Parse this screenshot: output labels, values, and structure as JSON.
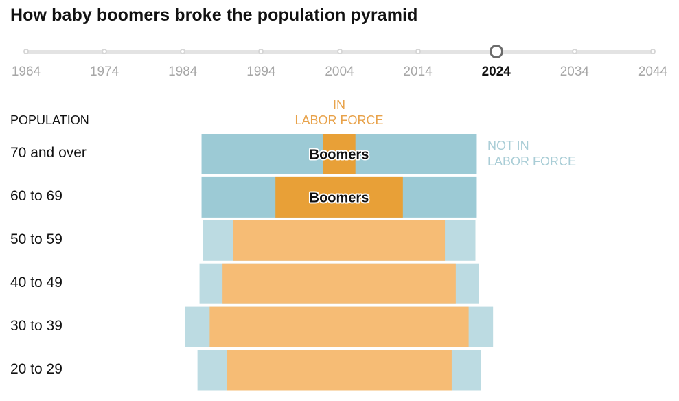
{
  "title": "How baby boomers broke the population pyramid",
  "timeline": {
    "years": [
      "1964",
      "1974",
      "1984",
      "1994",
      "2004",
      "2014",
      "2024",
      "2034",
      "2044"
    ],
    "selected": "2024"
  },
  "labels": {
    "population_header": "POPULATION",
    "in_labor_force": [
      "IN",
      "LABOR FORCE"
    ],
    "not_in_labor_force": [
      "NOT IN",
      "LABOR FORCE"
    ],
    "boomers": "Boomers"
  },
  "colors": {
    "in_labor_force": "#f6bc75",
    "not_in_labor_force": "#bcdbe2",
    "boomer_in_labor_force": "#e8a037",
    "boomer_not_in_labor_force": "#9ccad5"
  },
  "chart_data": {
    "type": "bar",
    "subtype": "population-pyramid",
    "categories": [
      "70 and over",
      "60 to 69",
      "50 to 59",
      "40 to 49",
      "30 to 39",
      "20 to 29"
    ],
    "series": [
      {
        "name": "IN LABOR FORCE",
        "values": [
          2.4,
          9.4,
          15.6,
          17.2,
          19.1,
          16.6
        ]
      },
      {
        "name": "NOT IN LABOR FORCE",
        "values": [
          17.9,
          10.9,
          4.5,
          3.4,
          3.6,
          4.3
        ]
      }
    ],
    "boomers": [
      true,
      true,
      false,
      false,
      false,
      false
    ],
    "xlim": [
      0,
      23
    ]
  }
}
